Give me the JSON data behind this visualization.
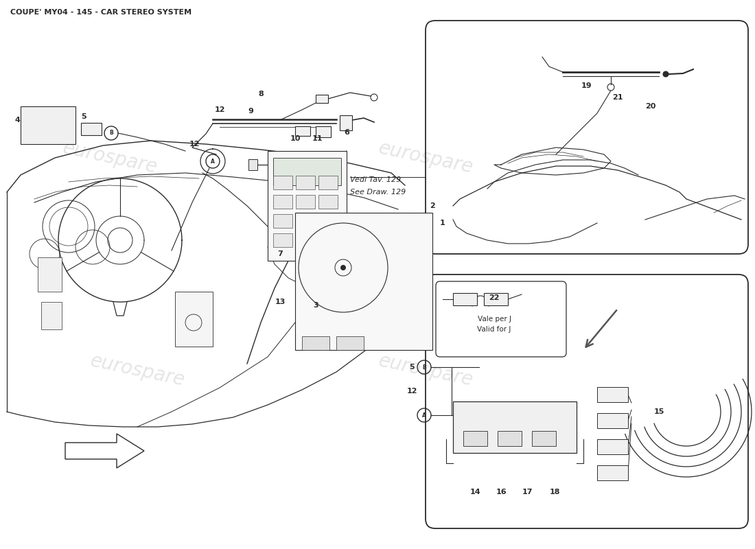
{
  "title": "COUPE' MY04 - 145 - CAR STEREO SYSTEM",
  "bg_color": "#ffffff",
  "line_color": "#2a2a2a",
  "wm_color": "#cccccc",
  "wm_text": "eurospare",
  "vedi1": "Vedi Tav. 129",
  "vedi2": "See Draw. 129",
  "vale1": "Vale per J",
  "vale2": "Valid for J"
}
